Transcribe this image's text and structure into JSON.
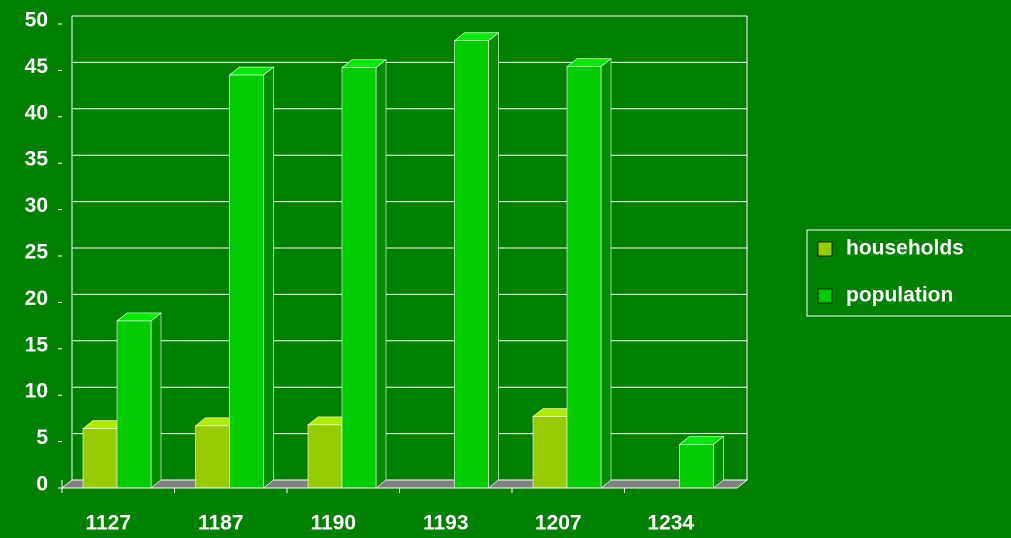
{
  "chart_data": {
    "type": "bar3d",
    "categories": [
      "1127",
      "1187",
      "1190",
      "1193",
      "1207",
      "1234"
    ],
    "series": [
      {
        "name": "households",
        "color": "#99cc00",
        "values": [
          6.4,
          6.7,
          6.8,
          null,
          7.7,
          null
        ]
      },
      {
        "name": "population",
        "color": "#00cc00",
        "values": [
          18,
          44.5,
          45.3,
          48.2,
          45.4,
          4.7
        ]
      }
    ],
    "ylim": [
      0,
      50
    ],
    "yticks": [
      0,
      5,
      10,
      15,
      20,
      25,
      30,
      35,
      40,
      45,
      50
    ],
    "grid": true
  }
}
